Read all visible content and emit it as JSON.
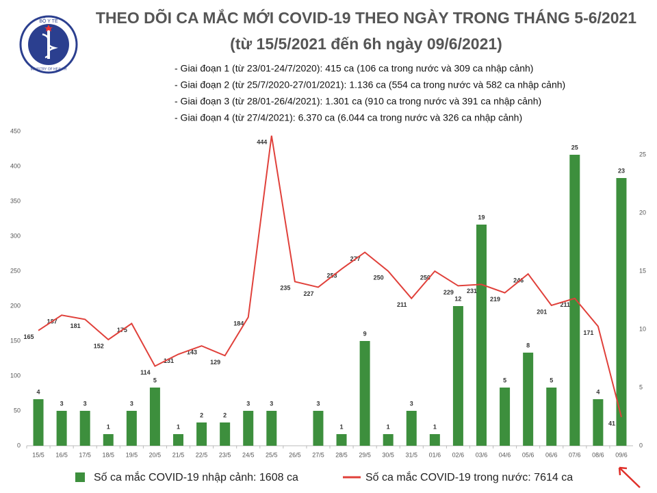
{
  "logo": {
    "top": "BỘ Y TẾ",
    "bottom": "MINISTRY OF HEALTH"
  },
  "chart_data": {
    "type": "combo",
    "title": "THEO DÕI CA MẮC MỚI COVID-19 THEO NGÀY TRONG THÁNG 5-6/2021",
    "subtitle": "(từ 15/5/2021 đến 6h ngày 09/6/2021)",
    "annotations": [
      "- Giai đoạn 1 (từ 23/01-24/7/2020): 415 ca (106 ca trong nước và 309 ca nhập cảnh)",
      "- Giai đoạn 2 (từ 25/7/2020-27/01/2021): 1.136 ca (554 ca trong nước và 582 ca nhập cảnh)",
      "- Giai đoạn 3 (từ 28/01-26/4/2021): 1.301 ca (910 ca trong nước và 391 ca nhập cảnh)",
      "- Giai đoạn 4 (từ 27/4/2021): 6.370 ca (6.044 ca trong nước và 326 ca nhập cảnh)"
    ],
    "categories": [
      "15/5",
      "16/5",
      "17/5",
      "18/5",
      "19/5",
      "20/5",
      "21/5",
      "22/5",
      "23/5",
      "24/5",
      "25/5",
      "26/5",
      "27/5",
      "28/5",
      "29/5",
      "30/5",
      "31/5",
      "01/6",
      "02/6",
      "03/6",
      "04/6",
      "05/6",
      "06/6",
      "07/6",
      "08/6",
      "09/6"
    ],
    "series": [
      {
        "name": "Số ca mắc COVID-19 nhập cảnh: 1608 ca",
        "type": "bar",
        "axis": "y2",
        "color": "#3d8f3d",
        "values": [
          4,
          3,
          3,
          1,
          3,
          5,
          1,
          2,
          2,
          3,
          3,
          null,
          3,
          1,
          9,
          1,
          3,
          1,
          12,
          19,
          5,
          8,
          5,
          25,
          4,
          23
        ]
      },
      {
        "name": "Số ca mắc COVID-19 trong nước: 7614 ca",
        "type": "line",
        "color": "#e0403a",
        "values": [
          165,
          187,
          181,
          152,
          175,
          114,
          131,
          143,
          129,
          184,
          444,
          235,
          227,
          253,
          277,
          250,
          211,
          250,
          229,
          231,
          219,
          246,
          201,
          211,
          171,
          41
        ]
      }
    ],
    "ylim": [
      0,
      450
    ],
    "yticks": [
      0,
      50,
      100,
      150,
      200,
      250,
      300,
      350,
      400,
      450
    ],
    "y2lim": [
      0,
      27
    ],
    "y2ticks": [
      0,
      5,
      10,
      15,
      20,
      25
    ],
    "grid": false,
    "legend": "bottom"
  }
}
